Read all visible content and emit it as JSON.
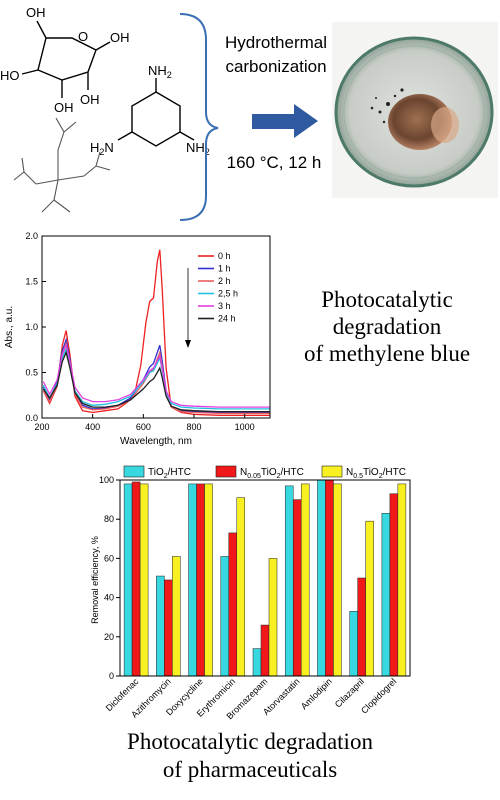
{
  "synthesis": {
    "arrow_label_top": [
      "Hydrothermal",
      "carbonization"
    ],
    "arrow_label_bottom": "160 °C, 12 h",
    "glucose_labels": [
      "OH",
      "O",
      "OH",
      "HO",
      "OH",
      "OH"
    ],
    "melamine_labels": [
      "NH",
      "H",
      "N",
      "NH"
    ],
    "melamine_subscripts": [
      "2",
      "2",
      "2"
    ]
  },
  "uv_caption": [
    "Photocatalytic",
    "degradation",
    "of methylene blue"
  ],
  "pharma_caption": [
    "Photocatalytic degradation",
    "of pharmaceuticals"
  ],
  "chart_data": [
    {
      "type": "line",
      "xlabel": "Wavelength, nm",
      "ylabel": "Abs., a.u.",
      "xlim": [
        200,
        1100
      ],
      "ylim": [
        0.0,
        2.0
      ],
      "xticks": [
        200,
        400,
        600,
        800,
        1000
      ],
      "yticks": [
        0.0,
        0.5,
        1.0,
        1.5,
        2.0
      ],
      "ytick_labels": [
        "0.0",
        "0.5",
        "1.0",
        "1.5",
        "2.0"
      ],
      "legend_position": "top-right",
      "series": [
        {
          "name": "0 h",
          "color": "#ee2020",
          "x": [
            205,
            230,
            260,
            280,
            295,
            310,
            330,
            360,
            400,
            450,
            500,
            540,
            570,
            590,
            610,
            625,
            640,
            655,
            665,
            675,
            690,
            710,
            750,
            800,
            900,
            1000,
            1100
          ],
          "y": [
            0.3,
            0.16,
            0.35,
            0.8,
            0.96,
            0.7,
            0.24,
            0.08,
            0.06,
            0.08,
            0.1,
            0.18,
            0.32,
            0.58,
            1.05,
            1.28,
            1.32,
            1.72,
            1.85,
            1.4,
            0.55,
            0.12,
            0.06,
            0.04,
            0.03,
            0.03,
            0.03
          ]
        },
        {
          "name": "1 h",
          "color": "#3030d0",
          "x": [
            205,
            230,
            260,
            280,
            295,
            310,
            330,
            360,
            400,
            450,
            500,
            550,
            600,
            625,
            640,
            655,
            665,
            675,
            690,
            710,
            750,
            800,
            900,
            1000,
            1100
          ],
          "y": [
            0.34,
            0.2,
            0.4,
            0.74,
            0.86,
            0.65,
            0.28,
            0.14,
            0.1,
            0.11,
            0.14,
            0.22,
            0.42,
            0.56,
            0.6,
            0.72,
            0.8,
            0.62,
            0.3,
            0.13,
            0.08,
            0.07,
            0.06,
            0.06,
            0.06
          ]
        },
        {
          "name": "2 h",
          "color": "#e86060",
          "x": [
            205,
            230,
            260,
            280,
            295,
            310,
            330,
            360,
            400,
            450,
            500,
            550,
            600,
            625,
            640,
            655,
            665,
            675,
            690,
            710,
            750,
            800,
            900,
            1000,
            1100
          ],
          "y": [
            0.3,
            0.18,
            0.36,
            0.7,
            0.82,
            0.62,
            0.26,
            0.12,
            0.09,
            0.1,
            0.13,
            0.2,
            0.38,
            0.5,
            0.54,
            0.65,
            0.72,
            0.56,
            0.27,
            0.12,
            0.07,
            0.06,
            0.05,
            0.05,
            0.05
          ]
        },
        {
          "name": "2,5 h",
          "color": "#20c0e0",
          "x": [
            205,
            230,
            260,
            280,
            295,
            310,
            330,
            360,
            400,
            450,
            500,
            550,
            600,
            625,
            640,
            655,
            665,
            675,
            690,
            710,
            750,
            800,
            900,
            1000,
            1100
          ],
          "y": [
            0.36,
            0.22,
            0.38,
            0.66,
            0.76,
            0.58,
            0.3,
            0.18,
            0.14,
            0.15,
            0.18,
            0.24,
            0.4,
            0.5,
            0.52,
            0.6,
            0.66,
            0.52,
            0.28,
            0.16,
            0.12,
            0.11,
            0.1,
            0.1,
            0.1
          ]
        },
        {
          "name": "3 h",
          "color": "#e040e0",
          "x": [
            205,
            230,
            260,
            280,
            295,
            310,
            330,
            360,
            400,
            450,
            500,
            550,
            600,
            625,
            640,
            655,
            665,
            675,
            690,
            710,
            750,
            800,
            900,
            1000,
            1100
          ],
          "y": [
            0.4,
            0.26,
            0.42,
            0.7,
            0.8,
            0.62,
            0.34,
            0.22,
            0.18,
            0.18,
            0.2,
            0.26,
            0.42,
            0.52,
            0.55,
            0.63,
            0.68,
            0.54,
            0.3,
            0.18,
            0.14,
            0.13,
            0.12,
            0.12,
            0.12
          ]
        },
        {
          "name": "24 h",
          "color": "#202020",
          "x": [
            205,
            230,
            260,
            280,
            295,
            310,
            330,
            360,
            400,
            450,
            500,
            550,
            600,
            625,
            640,
            655,
            665,
            675,
            690,
            710,
            750,
            800,
            900,
            1000,
            1100
          ],
          "y": [
            0.32,
            0.22,
            0.36,
            0.62,
            0.72,
            0.55,
            0.28,
            0.16,
            0.12,
            0.12,
            0.14,
            0.2,
            0.32,
            0.4,
            0.43,
            0.5,
            0.55,
            0.44,
            0.24,
            0.13,
            0.09,
            0.08,
            0.07,
            0.07,
            0.07
          ]
        }
      ]
    },
    {
      "type": "bar",
      "ylabel": "Removal efficiency, %",
      "ylim": [
        0,
        100
      ],
      "yticks": [
        0,
        20,
        40,
        60,
        80,
        100
      ],
      "legend_position": "top",
      "categories": [
        "Diclofenac",
        "Azithromycin",
        "Doxycycline",
        "Erythromicin",
        "Bromazepam",
        "Atorvastatin",
        "Amlodipin",
        "Cilazapril",
        "Clopidogrel"
      ],
      "series": [
        {
          "name": "TiO2/HTC",
          "name_parts": [
            "TiO",
            "2",
            "/HTC"
          ],
          "color": "#38d8e0",
          "values": [
            98,
            51,
            98,
            61,
            14,
            97,
            100,
            33,
            83
          ]
        },
        {
          "name": "N0.05TiO2/HTC",
          "name_parts": [
            "N",
            "0.05",
            "TiO",
            "2",
            "/HTC"
          ],
          "color": "#f01818",
          "values": [
            99,
            49,
            98,
            73,
            26,
            90,
            100,
            50,
            93
          ]
        },
        {
          "name": "N0.5TiO2/HTC",
          "name_parts": [
            "N",
            "0.5",
            "TiO",
            "2",
            "/HTC"
          ],
          "color": "#f8f020",
          "values": [
            98,
            61,
            98,
            91,
            60,
            98,
            98,
            79,
            98
          ]
        }
      ]
    }
  ]
}
